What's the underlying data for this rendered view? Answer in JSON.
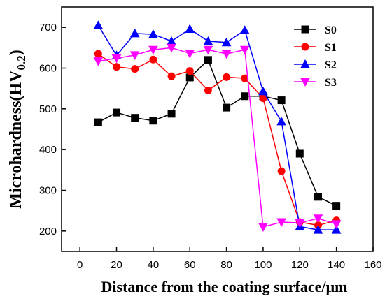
{
  "chart_data": {
    "type": "line",
    "title": "",
    "xlabel": "Distance from the coating surface/µm",
    "ylabel_main": "Microhardness(HV",
    "ylabel_sub": "0.2",
    "ylabel_close": ")",
    "xlim": [
      -10,
      160
    ],
    "ylim": [
      150,
      750
    ],
    "xticks": [
      0,
      20,
      40,
      60,
      80,
      100,
      120,
      140,
      160
    ],
    "yticks": [
      200,
      300,
      400,
      500,
      600,
      700
    ],
    "grid": false,
    "legend_position": "top-right",
    "series": [
      {
        "name": "S0",
        "color": "#000000",
        "marker": "square",
        "x": [
          10,
          20,
          30,
          40,
          50,
          60,
          70,
          80,
          90,
          100,
          110,
          120,
          130,
          140
        ],
        "y": [
          467,
          491,
          478,
          471,
          488,
          577,
          620,
          503,
          531,
          531,
          521,
          390,
          284,
          262
        ]
      },
      {
        "name": "S1",
        "color": "#ff0000",
        "marker": "circle",
        "x": [
          10,
          20,
          30,
          40,
          50,
          60,
          70,
          80,
          90,
          100,
          110,
          120,
          130,
          140
        ],
        "y": [
          635,
          603,
          598,
          621,
          580,
          593,
          545,
          578,
          575,
          526,
          347,
          222,
          214,
          226
        ]
      },
      {
        "name": "S2",
        "color": "#0000ff",
        "marker": "triangle-up",
        "x": [
          10,
          20,
          30,
          40,
          50,
          60,
          70,
          80,
          90,
          100,
          110,
          120,
          130,
          140
        ],
        "y": [
          705,
          631,
          685,
          683,
          666,
          696,
          666,
          663,
          693,
          543,
          469,
          211,
          203,
          203
        ]
      },
      {
        "name": "S3",
        "color": "#ff00ff",
        "marker": "triangle-down",
        "x": [
          10,
          20,
          30,
          40,
          50,
          60,
          70,
          80,
          90,
          100,
          110,
          120,
          130,
          140
        ],
        "y": [
          617,
          624,
          632,
          645,
          650,
          636,
          645,
          635,
          645,
          210,
          222,
          220,
          231,
          217
        ]
      }
    ]
  }
}
